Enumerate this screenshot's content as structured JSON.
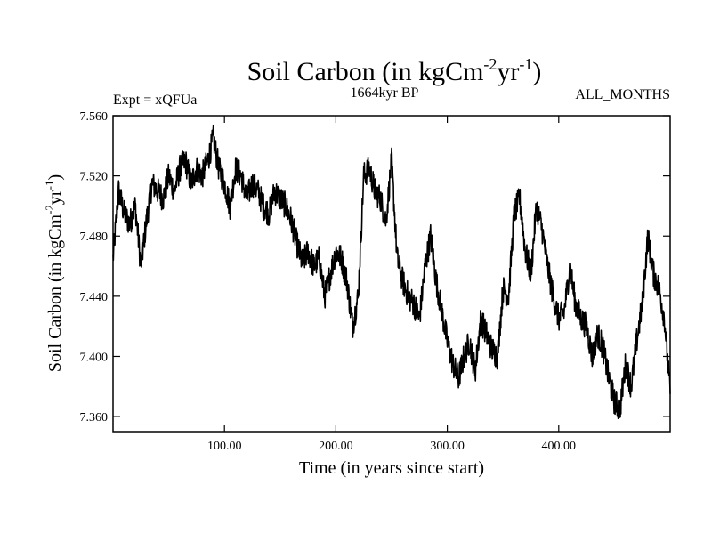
{
  "chart_data": {
    "type": "line",
    "title": {
      "main": "Soil Carbon (in kgCm",
      "sup1": "-2",
      "mid": "yr",
      "sup2": "-1",
      "end": ")"
    },
    "subtitle_left": "Expt = xQFUa",
    "subtitle_center": "1664kyr BP",
    "subtitle_right": "ALL_MONTHS",
    "xlabel": "Time (in years since start)",
    "ylabel": {
      "main": "Soil Carbon (in kgCm",
      "sup1": "-2",
      "mid": "yr",
      "sup2": "-1",
      "end": ")"
    },
    "xlim": [
      0,
      500
    ],
    "ylim": [
      7.35,
      7.56
    ],
    "x_ticks": [
      100,
      200,
      300,
      400
    ],
    "x_tick_labels": [
      "100.00",
      "200.00",
      "300.00",
      "400.00"
    ],
    "y_ticks": [
      7.36,
      7.4,
      7.44,
      7.48,
      7.52,
      7.56
    ],
    "y_tick_labels": [
      "7.360",
      "7.400",
      "7.440",
      "7.480",
      "7.520",
      "7.560"
    ],
    "line_color": "#000000",
    "series": [
      {
        "name": "Soil Carbon",
        "x": [
          0,
          5,
          10,
          15,
          20,
          25,
          30,
          35,
          40,
          45,
          50,
          55,
          60,
          65,
          70,
          75,
          80,
          85,
          90,
          95,
          100,
          105,
          110,
          115,
          120,
          125,
          130,
          135,
          140,
          145,
          150,
          155,
          160,
          165,
          170,
          175,
          180,
          185,
          190,
          195,
          200,
          205,
          210,
          215,
          220,
          225,
          230,
          235,
          240,
          245,
          250,
          255,
          260,
          265,
          270,
          275,
          280,
          285,
          290,
          295,
          300,
          305,
          310,
          315,
          320,
          325,
          330,
          335,
          340,
          345,
          350,
          355,
          360,
          365,
          370,
          375,
          380,
          385,
          390,
          395,
          400,
          405,
          410,
          415,
          420,
          425,
          430,
          435,
          440,
          445,
          450,
          455,
          460,
          465,
          470,
          475,
          480,
          485,
          490,
          495,
          500
        ],
        "values": [
          7.465,
          7.51,
          7.495,
          7.488,
          7.5,
          7.46,
          7.49,
          7.515,
          7.51,
          7.505,
          7.52,
          7.51,
          7.525,
          7.53,
          7.515,
          7.525,
          7.52,
          7.53,
          7.545,
          7.525,
          7.515,
          7.5,
          7.525,
          7.52,
          7.505,
          7.515,
          7.51,
          7.5,
          7.495,
          7.51,
          7.505,
          7.5,
          7.49,
          7.475,
          7.462,
          7.47,
          7.46,
          7.465,
          7.44,
          7.455,
          7.47,
          7.465,
          7.45,
          7.42,
          7.44,
          7.52,
          7.525,
          7.51,
          7.505,
          7.49,
          7.53,
          7.465,
          7.45,
          7.44,
          7.435,
          7.425,
          7.46,
          7.48,
          7.45,
          7.43,
          7.41,
          7.395,
          7.385,
          7.4,
          7.41,
          7.39,
          7.425,
          7.415,
          7.405,
          7.4,
          7.445,
          7.44,
          7.495,
          7.505,
          7.47,
          7.455,
          7.5,
          7.485,
          7.46,
          7.44,
          7.425,
          7.43,
          7.46,
          7.435,
          7.425,
          7.42,
          7.4,
          7.415,
          7.405,
          7.385,
          7.37,
          7.365,
          7.395,
          7.38,
          7.41,
          7.435,
          7.48,
          7.455,
          7.445,
          7.425,
          7.375
        ]
      }
    ]
  }
}
